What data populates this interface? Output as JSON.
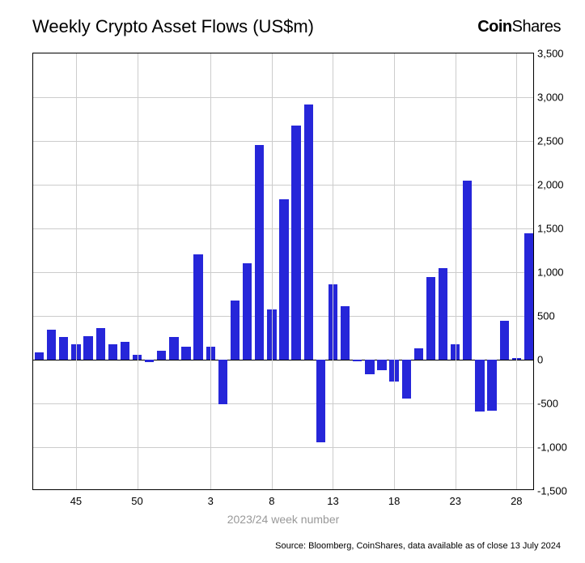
{
  "title": "Weekly Crypto Asset Flows (US$m)",
  "brand_bold": "Coin",
  "brand_thin": "Shares",
  "footer": "Source: Bloomberg, CoinShares, data available as of close 13 July 2024",
  "xaxis_title": "2023/24 week number",
  "chart": {
    "type": "bar",
    "ylim": [
      -1500,
      3500
    ],
    "ytick_step": 500,
    "yticks": [
      -1500,
      -1000,
      -500,
      0,
      500,
      1000,
      1500,
      2000,
      2500,
      3000,
      3500
    ],
    "xtick_labels": [
      "45",
      "50",
      "3",
      "8",
      "13",
      "18",
      "23",
      "28"
    ],
    "xtick_positions": [
      3,
      8,
      14,
      19,
      24,
      29,
      34,
      39
    ],
    "bar_color": "#2626d9",
    "grid_color": "#cccccc",
    "background_color": "#ffffff",
    "border_color": "#000000",
    "bar_width_ratio": 0.75,
    "title_fontsize": 22,
    "label_fontsize": 13,
    "values": [
      80,
      340,
      260,
      180,
      270,
      360,
      180,
      200,
      60,
      -30,
      100,
      260,
      150,
      1200,
      150,
      -510,
      680,
      1100,
      2450,
      570,
      1830,
      2680,
      2920,
      -940,
      860,
      610,
      -20,
      -170,
      -120,
      -250,
      -440,
      130,
      940,
      1050,
      180,
      2050,
      -590,
      -580,
      440,
      20,
      1440
    ]
  }
}
